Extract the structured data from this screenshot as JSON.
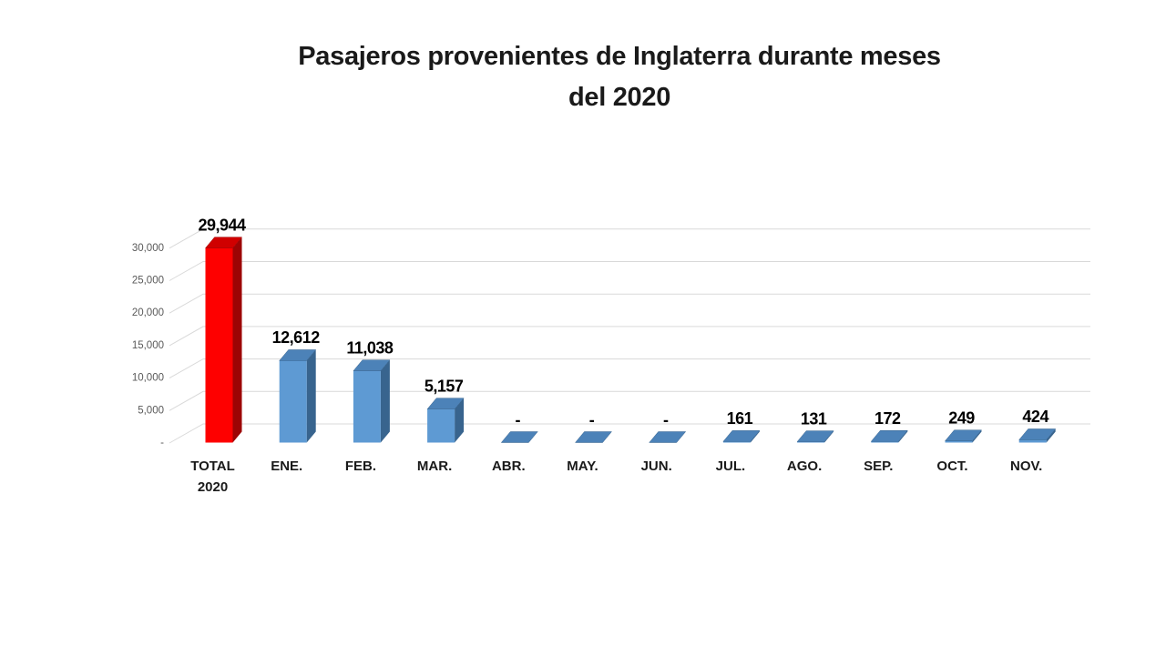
{
  "title": {
    "line1": "Pasajeros provenientes de Inglaterra durante meses",
    "line2": "del 2020"
  },
  "chart_data": {
    "type": "bar",
    "variant": "3d-column",
    "title": "Pasajeros provenientes de Inglaterra durante meses del 2020",
    "categories": [
      "TOTAL 2020",
      "ENE.",
      "FEB.",
      "MAR.",
      "ABR.",
      "MAY.",
      "JUN.",
      "JUL.",
      "AGO.",
      "SEP.",
      "OCT.",
      "NOV."
    ],
    "axis_labels": [
      "TOTAL\n2020",
      "ENE.",
      "FEB.",
      "MAR.",
      "ABR.",
      "MAY.",
      "JUN.",
      "JUL.",
      "AGO.",
      "SEP.",
      "OCT.",
      "NOV."
    ],
    "values": [
      29944,
      12612,
      11038,
      5157,
      0,
      0,
      0,
      161,
      131,
      172,
      249,
      424
    ],
    "value_labels": [
      "29,944",
      "12,612",
      "11,038",
      "5,157",
      "-",
      "-",
      "-",
      "161",
      "131",
      "172",
      "249",
      "424"
    ],
    "highlight_index": 0,
    "y_ticks": [
      {
        "value": 30000,
        "label": "30,000"
      },
      {
        "value": 25000,
        "label": "25,000"
      },
      {
        "value": 20000,
        "label": "20,000"
      },
      {
        "value": 15000,
        "label": "15,000"
      },
      {
        "value": 10000,
        "label": "10,000"
      },
      {
        "value": 5000,
        "label": "5,000"
      },
      {
        "value": 0,
        "label": "-"
      }
    ],
    "ylim": [
      0,
      30000
    ],
    "grid": true,
    "legend": false,
    "xlabel": "",
    "ylabel": "",
    "colors": {
      "bar_front": "#5E9AD3",
      "bar_side": "#38648E",
      "bar_top": "#4C82B8",
      "highlight_front": "#FE0000",
      "highlight_side": "#9C0404",
      "highlight_top": "#D00000",
      "gridline": "#D9D9D9",
      "axis_text": "#595959",
      "category_text": "#1a1a1a",
      "value_text": "#000000",
      "title_text": "#1a1a1a",
      "background": "#FFFFFF"
    }
  }
}
